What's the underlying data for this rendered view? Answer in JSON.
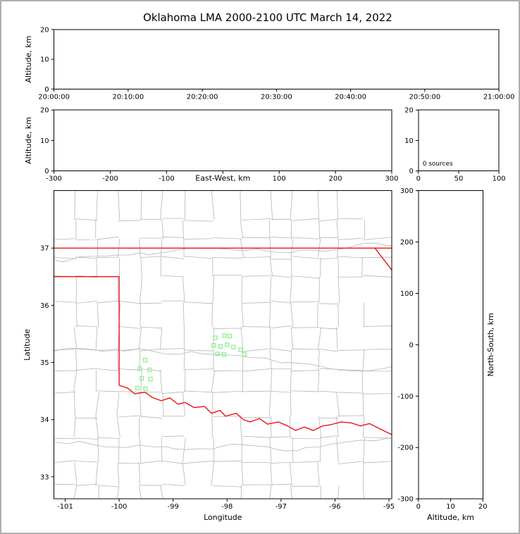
{
  "title": "Oklahoma LMA 2000-2100 UTC March 14, 2022",
  "colors": {
    "axis": "#000000",
    "county_lines": "#b5b5b5",
    "state_border": "#ee1111",
    "station_marker": "#90ee90",
    "frame": "#b0b0b0",
    "background": "#ffffff"
  },
  "panels": {
    "time_height": {
      "ylabel": "Altitude, km",
      "yticks": [
        "0",
        "10",
        "20"
      ],
      "xticks": [
        "20:00:00",
        "20:10:00",
        "20:20:00",
        "20:30:00",
        "20:40:00",
        "20:50:00",
        "21:00:00"
      ]
    },
    "ew_height": {
      "ylabel": "Altitude, km",
      "xlabel": "East-West, km",
      "yticks": [
        "0",
        "10",
        "20"
      ],
      "xticks": [
        "-300",
        "-200",
        "-100",
        "",
        "100",
        "200",
        "300"
      ]
    },
    "histogram": {
      "annotation": "0 sources",
      "yticks": [
        "0",
        "10",
        "20"
      ],
      "xticks": [
        "0",
        "50",
        "100"
      ]
    },
    "map": {
      "ylabel": "Latitude",
      "xlabel": "Longitude",
      "yticks": [
        "33",
        "34",
        "35",
        "36",
        "37"
      ],
      "xticks": [
        "-101",
        "-100",
        "-99",
        "-98",
        "-97",
        "-96",
        "-95"
      ]
    },
    "ns_height": {
      "ylabel": "North-South, km",
      "xlabel": "Altitude, km",
      "yticks": [
        "-300",
        "-200",
        "-100",
        "0",
        "100",
        "200",
        "300"
      ],
      "xticks": [
        "0",
        "10",
        "20"
      ]
    }
  },
  "chart_data": [
    {
      "type": "scatter",
      "panel": "time-height",
      "xlabel": "Time (UTC)",
      "ylabel": "Altitude, km",
      "xlim": [
        "20:00:00",
        "21:00:00"
      ],
      "xtick_interval": "10 min",
      "ylim": [
        0,
        20
      ],
      "ytick_values": [
        0,
        10,
        20
      ],
      "points": [],
      "note": "panel empty - no VHF sources plotted"
    },
    {
      "type": "scatter",
      "panel": "east-west-height",
      "xlabel": "East-West, km",
      "ylabel": "Altitude, km",
      "xlim": [
        -300,
        300
      ],
      "xtick_values": [
        -300,
        -200,
        -100,
        0,
        100,
        200,
        300
      ],
      "ylim": [
        0,
        20
      ],
      "ytick_values": [
        0,
        10,
        20
      ],
      "points": []
    },
    {
      "type": "histogram",
      "panel": "source-count",
      "xlim": [
        0,
        100
      ],
      "xtick_values": [
        0,
        50,
        100
      ],
      "ylim": [
        0,
        20
      ],
      "ytick_values": [
        0,
        10,
        20
      ],
      "annotation": "0 sources",
      "bins": []
    },
    {
      "type": "scatter",
      "panel": "plan-view-map",
      "xlabel": "Longitude",
      "ylabel": "Latitude",
      "xlim": [
        -101.2,
        -94.95
      ],
      "ylim": [
        32.6,
        38.0
      ],
      "xtick_values": [
        -101,
        -100,
        -99,
        -98,
        -97,
        -96,
        -95
      ],
      "ytick_values": [
        33,
        34,
        35,
        36,
        37
      ],
      "points": [],
      "stations_lon_lat": [
        [
          -99.52,
          35.04
        ],
        [
          -99.62,
          34.89
        ],
        [
          -99.44,
          34.87
        ],
        [
          -99.58,
          34.72
        ],
        [
          -99.42,
          34.71
        ],
        [
          -99.66,
          34.55
        ],
        [
          -99.51,
          34.54
        ],
        [
          -98.22,
          35.43
        ],
        [
          -98.05,
          35.47
        ],
        [
          -97.95,
          35.46
        ],
        [
          -98.25,
          35.3
        ],
        [
          -98.12,
          35.28
        ],
        [
          -98.0,
          35.31
        ],
        [
          -97.88,
          35.27
        ],
        [
          -98.18,
          35.15
        ],
        [
          -98.06,
          35.14
        ],
        [
          -97.75,
          35.22
        ],
        [
          -97.68,
          35.14
        ]
      ],
      "state_border_polylines": [
        [
          [
            -101.21,
            37.0
          ],
          [
            -94.95,
            37.0
          ]
        ],
        [
          [
            -101.21,
            36.5
          ],
          [
            -100.0,
            36.5
          ],
          [
            -100.0,
            34.6
          ]
        ],
        [
          [
            -100.0,
            34.6
          ],
          [
            -99.84,
            34.55
          ],
          [
            -99.71,
            34.45
          ],
          [
            -99.52,
            34.48
          ],
          [
            -99.39,
            34.39
          ],
          [
            -99.22,
            34.33
          ],
          [
            -99.06,
            34.38
          ],
          [
            -98.91,
            34.27
          ],
          [
            -98.78,
            34.3
          ],
          [
            -98.61,
            34.21
          ],
          [
            -98.42,
            34.23
          ],
          [
            -98.29,
            34.11
          ],
          [
            -98.13,
            34.16
          ],
          [
            -98.03,
            34.06
          ],
          [
            -97.83,
            34.11
          ],
          [
            -97.7,
            34.0
          ],
          [
            -97.57,
            33.96
          ],
          [
            -97.4,
            34.02
          ],
          [
            -97.25,
            33.92
          ],
          [
            -97.05,
            33.96
          ],
          [
            -96.88,
            33.89
          ],
          [
            -96.73,
            33.81
          ],
          [
            -96.57,
            33.87
          ],
          [
            -96.4,
            33.81
          ],
          [
            -96.23,
            33.89
          ],
          [
            -96.08,
            33.91
          ],
          [
            -95.88,
            33.96
          ],
          [
            -95.69,
            33.94
          ],
          [
            -95.53,
            33.89
          ],
          [
            -95.36,
            33.93
          ],
          [
            -95.17,
            33.84
          ],
          [
            -95.04,
            33.78
          ],
          [
            -94.95,
            33.74
          ]
        ],
        [
          [
            -95.26,
            37.0
          ],
          [
            -94.95,
            36.62
          ]
        ]
      ]
    },
    {
      "type": "scatter",
      "panel": "height-north-south",
      "xlabel": "Altitude, km",
      "ylabel": "North-South, km",
      "xlim": [
        0,
        20
      ],
      "xtick_values": [
        0,
        10,
        20
      ],
      "ylim": [
        -300,
        300
      ],
      "ytick_values": [
        -300,
        -200,
        -100,
        0,
        100,
        200,
        300
      ],
      "points": []
    }
  ]
}
